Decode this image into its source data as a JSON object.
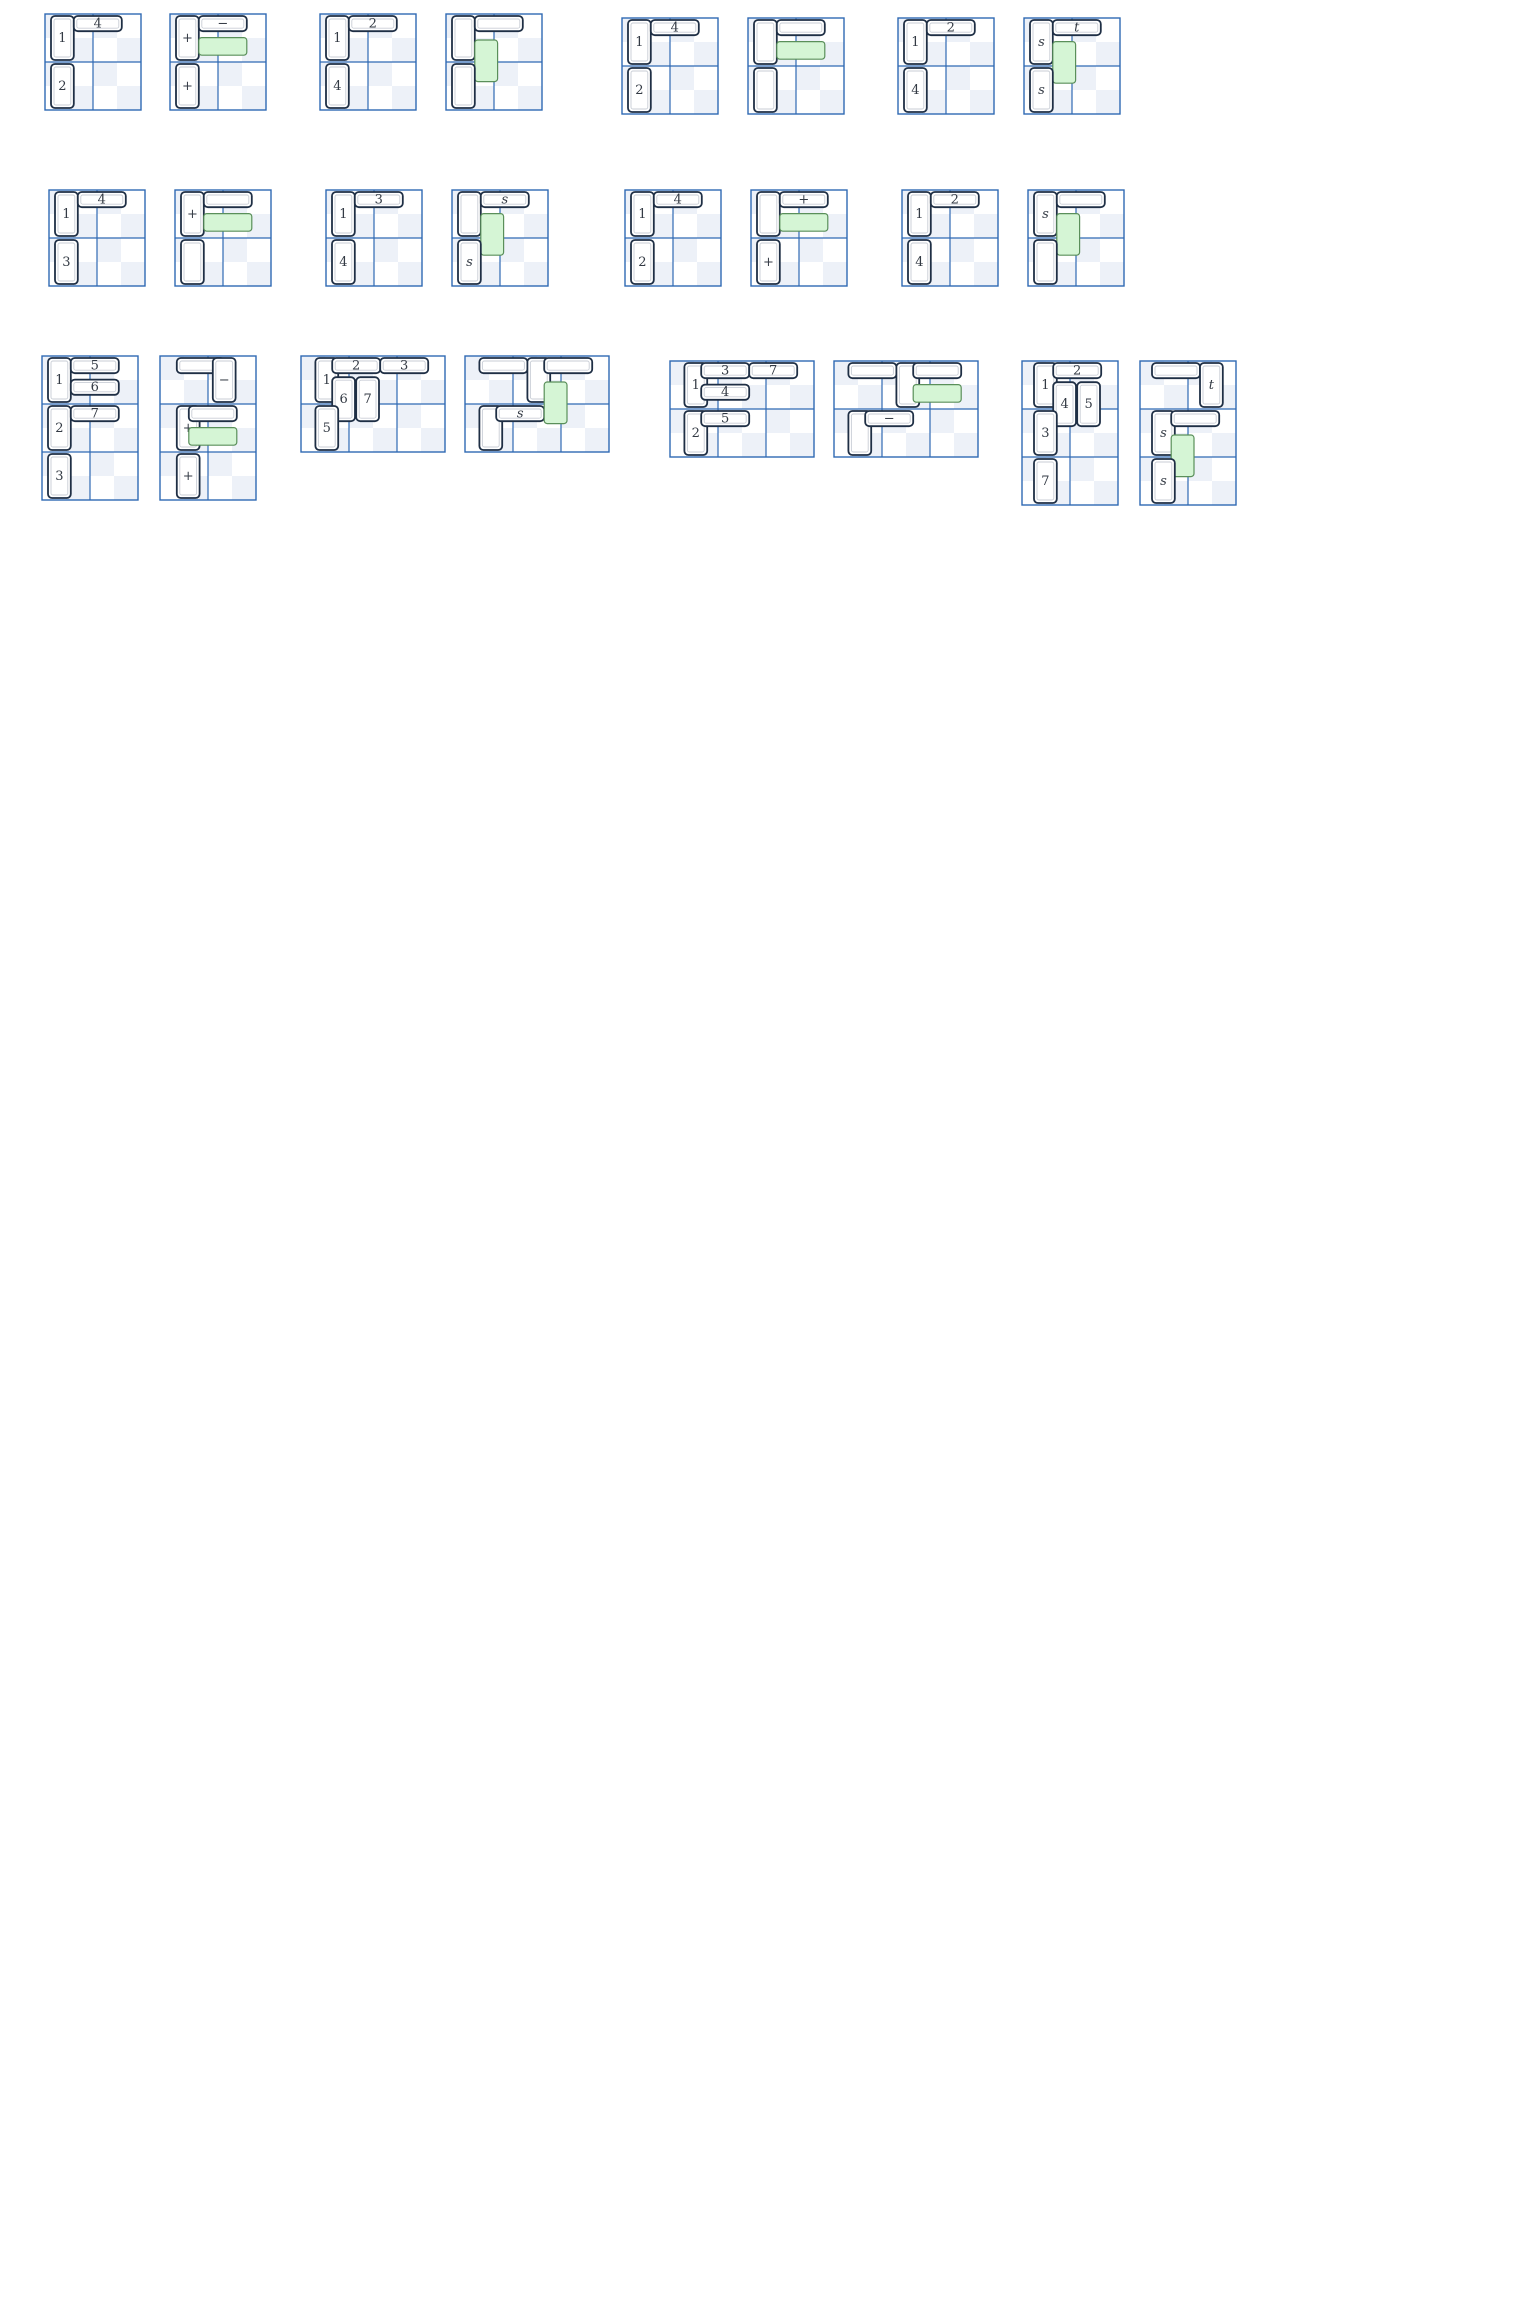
{
  "colors": {
    "grid": "#2f69b3",
    "light_cell": "#edf1f8",
    "white_cell": "#ffffff",
    "domino_stroke": "#1f2f45",
    "highlight_fill": "#d5f5d5",
    "highlight_stroke": "#5a8f5a",
    "label": "#333a44"
  },
  "panels": [
    {
      "id": "r1p1",
      "rows": 2,
      "labels": [
        "1",
        "4",
        "2"
      ]
    },
    {
      "id": "r1p2",
      "rows": 2,
      "labels": [
        "+",
        "−",
        "+"
      ]
    },
    {
      "id": "r1p3",
      "rows": 2,
      "labels": [
        "1",
        "2",
        "4"
      ]
    },
    {
      "id": "r1p4",
      "rows": 2,
      "labels": [
        "",
        "",
        ""
      ]
    },
    {
      "id": "r1p5",
      "rows": 2,
      "labels": [
        "1",
        "4",
        "2"
      ]
    },
    {
      "id": "r1p6",
      "rows": 2,
      "labels": [
        "",
        "",
        ""
      ]
    },
    {
      "id": "r1p7",
      "rows": 2,
      "labels": [
        "1",
        "2",
        "4"
      ]
    },
    {
      "id": "r1p8",
      "rows": 2,
      "labels": [
        "s",
        "t",
        "s"
      ]
    },
    {
      "id": "r2p1",
      "rows": 2,
      "labels": [
        "1",
        "4",
        "3"
      ]
    },
    {
      "id": "r2p2",
      "rows": 2,
      "labels": [
        "+",
        "",
        ""
      ]
    },
    {
      "id": "r2p3",
      "rows": 2,
      "labels": [
        "1",
        "3",
        "4"
      ]
    },
    {
      "id": "r2p4",
      "rows": 2,
      "labels": [
        "",
        "s",
        "s"
      ]
    },
    {
      "id": "r2p5",
      "rows": 2,
      "labels": [
        "1",
        "4",
        "2"
      ]
    },
    {
      "id": "r2p6",
      "rows": 2,
      "labels": [
        "",
        "+",
        "+"
      ]
    },
    {
      "id": "r2p7",
      "rows": 2,
      "labels": [
        "1",
        "2",
        "4"
      ]
    },
    {
      "id": "r2p8",
      "rows": 2,
      "labels": [
        "s",
        "",
        ""
      ]
    },
    {
      "id": "r3p1",
      "rows": 3,
      "labels": [
        "1",
        "5",
        "6",
        "2",
        "7",
        "3"
      ]
    },
    {
      "id": "r3p2",
      "rows": 3,
      "labels": [
        "−",
        "+",
        "+"
      ]
    },
    {
      "id": "r3p3",
      "rows": 2,
      "labels": [
        "1",
        "2",
        "3",
        "6",
        "7",
        "5"
      ]
    },
    {
      "id": "r3p4",
      "rows": 2,
      "labels": [
        "s"
      ]
    },
    {
      "id": "r3p5",
      "rows": 2,
      "labels": [
        "1",
        "3",
        "7",
        "4",
        "2",
        "5"
      ]
    },
    {
      "id": "r3p6",
      "rows": 2,
      "labels": [
        "−"
      ]
    },
    {
      "id": "r3p7",
      "rows": 3,
      "labels": [
        "1",
        "2",
        "4",
        "5",
        "3",
        "7"
      ]
    },
    {
      "id": "r3p8",
      "rows": 3,
      "labels": [
        "t",
        "s",
        "s"
      ]
    }
  ]
}
